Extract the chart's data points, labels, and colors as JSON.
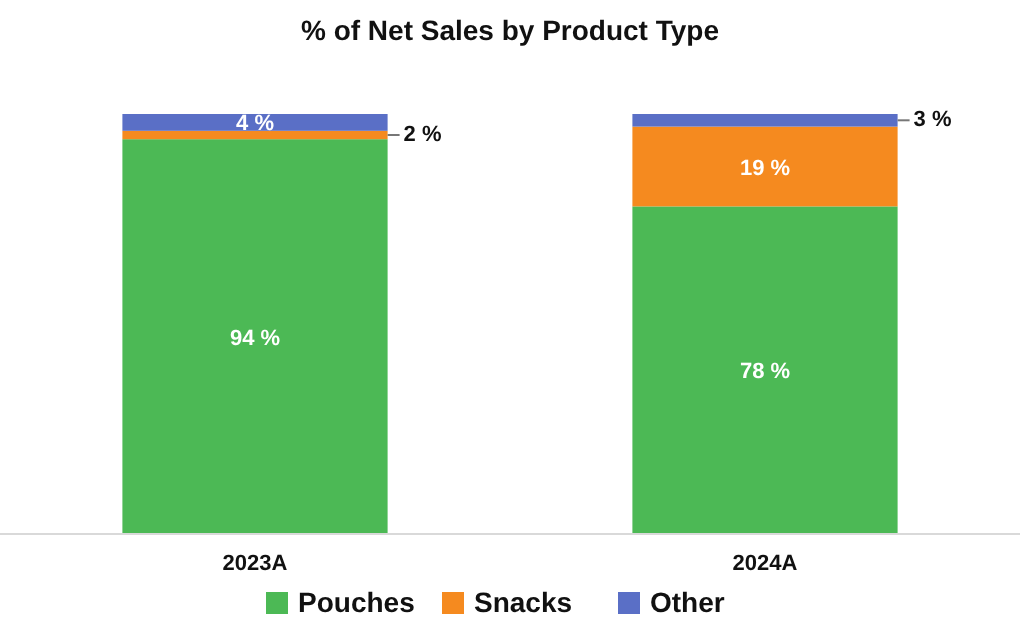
{
  "chart_data": {
    "type": "bar",
    "title": "% of Net Sales by Product Type",
    "categories": [
      "2023A",
      "2024A"
    ],
    "stacked": true,
    "relative": false,
    "series": [
      {
        "name": "Pouches",
        "color": "#4cb955",
        "values": [
          94,
          78
        ],
        "value_labels": [
          "94 %",
          "78 %"
        ]
      },
      {
        "name": "Snacks",
        "color": "#f58a1f",
        "values": [
          2,
          19
        ],
        "value_labels": [
          "2 %",
          "19 %"
        ]
      },
      {
        "name": "Other",
        "color": "#5a6fc6",
        "values": [
          4,
          3
        ],
        "value_labels": [
          "4 %",
          "3 %"
        ]
      }
    ],
    "legend": "bottom"
  }
}
